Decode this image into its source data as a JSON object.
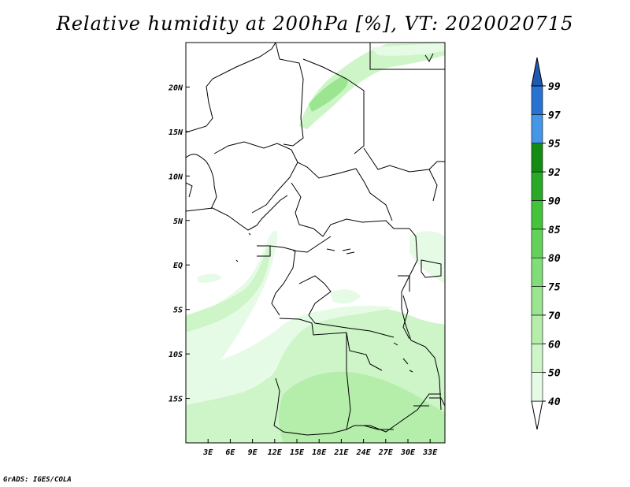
{
  "title": "Relative humidity at 200hPa [%], VT: 2020020715",
  "credit": "GrADS: IGES/COLA",
  "map": {
    "lon_range": [
      0,
      35
    ],
    "lat_range": [
      -20,
      25
    ],
    "lon_ticks": [
      {
        "value": 3,
        "label": "3E"
      },
      {
        "value": 6,
        "label": "6E"
      },
      {
        "value": 9,
        "label": "9E"
      },
      {
        "value": 12,
        "label": "12E"
      },
      {
        "value": 15,
        "label": "15E"
      },
      {
        "value": 18,
        "label": "18E"
      },
      {
        "value": 21,
        "label": "21E"
      },
      {
        "value": 24,
        "label": "24E"
      },
      {
        "value": 27,
        "label": "27E"
      },
      {
        "value": 30,
        "label": "30E"
      },
      {
        "value": 33,
        "label": "33E"
      }
    ],
    "lat_ticks": [
      {
        "value": 20,
        "label": "20N"
      },
      {
        "value": 15,
        "label": "15N"
      },
      {
        "value": 10,
        "label": "10N"
      },
      {
        "value": 5,
        "label": "5N"
      },
      {
        "value": 0,
        "label": "EQ"
      },
      {
        "value": -5,
        "label": "5S"
      },
      {
        "value": -10,
        "label": "10S"
      },
      {
        "value": -15,
        "label": "15S"
      }
    ]
  },
  "colorbar": {
    "levels": [
      "40",
      "50",
      "60",
      "70",
      "75",
      "80",
      "85",
      "90",
      "92",
      "95",
      "97",
      "99"
    ],
    "colors": [
      "#ffffff",
      "#e6fbe6",
      "#cdf5c8",
      "#b4eeaa",
      "#9be591",
      "#82dc78",
      "#64d25a",
      "#46c33c",
      "#28aa28",
      "#148c14",
      "#4696e6",
      "#2873d2",
      "#1e5ab4"
    ]
  }
}
